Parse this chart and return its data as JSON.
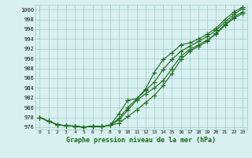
{
  "title": "Graphe pression niveau de la mer (hPa)",
  "x_hours": [
    0,
    1,
    2,
    3,
    4,
    5,
    6,
    7,
    8,
    9,
    10,
    11,
    12,
    13,
    14,
    15,
    16,
    17,
    18,
    19,
    20,
    21,
    22,
    23
  ],
  "line1": [
    978.0,
    977.2,
    976.5,
    976.3,
    976.2,
    976.0,
    976.2,
    976.1,
    976.4,
    977.8,
    980.0,
    981.8,
    983.5,
    985.2,
    987.8,
    989.8,
    991.5,
    992.5,
    993.5,
    994.5,
    995.8,
    997.5,
    999.0,
    1000.2
  ],
  "line2": [
    978.0,
    977.2,
    976.5,
    976.3,
    976.2,
    976.0,
    976.2,
    976.1,
    976.4,
    978.8,
    981.5,
    981.8,
    983.8,
    987.2,
    989.8,
    991.2,
    992.8,
    993.2,
    994.0,
    995.0,
    996.2,
    998.0,
    999.5,
    1000.5
  ],
  "line3": [
    978.0,
    977.2,
    976.5,
    976.3,
    976.2,
    976.0,
    976.2,
    976.1,
    976.4,
    977.5,
    979.5,
    981.5,
    982.8,
    984.0,
    985.5,
    988.0,
    990.5,
    991.8,
    992.8,
    993.8,
    995.0,
    996.8,
    998.2,
    999.2
  ],
  "line4": [
    978.0,
    977.2,
    976.5,
    976.3,
    976.2,
    976.0,
    976.2,
    976.1,
    976.4,
    976.8,
    978.2,
    979.5,
    981.0,
    982.5,
    984.5,
    987.0,
    989.8,
    991.5,
    992.5,
    993.5,
    995.2,
    997.0,
    998.5,
    999.5
  ],
  "line_color": "#1a6b1a",
  "bg_color": "#d8f0f0",
  "grid_color": "#a0c8c8",
  "ylim": [
    975.5,
    1001.0
  ],
  "yticks": [
    976,
    978,
    980,
    982,
    984,
    986,
    988,
    990,
    992,
    994,
    996,
    998,
    1000
  ],
  "xtick_labels": [
    "0",
    "1",
    "2",
    "3",
    "4",
    "5",
    "6",
    "7",
    "8",
    "9",
    "10",
    "11",
    "12",
    "13",
    "14",
    "15",
    "16",
    "17",
    "18",
    "19",
    "20",
    "21",
    "22",
    "23"
  ],
  "marker": "+",
  "markersize": 4,
  "linewidth": 0.8
}
